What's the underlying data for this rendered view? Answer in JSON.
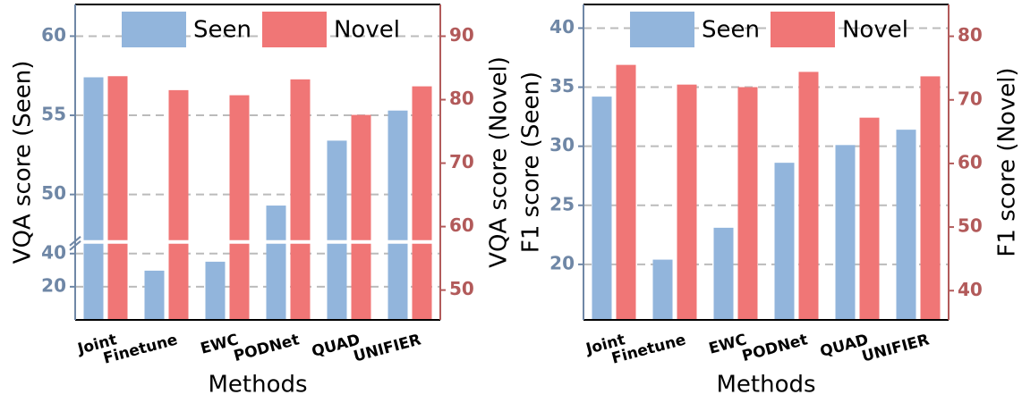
{
  "chart_data": [
    {
      "type": "bar",
      "xlabel": "Methods",
      "ylabel": "VQA score (Seen)",
      "y2label": "VQA score (Novel)",
      "categories": [
        "Joint",
        "Finetune",
        "EWC",
        "PODNet",
        "QUAD",
        "UNIFIER"
      ],
      "series": [
        {
          "name": "Seen",
          "color": "#92b5dc",
          "values": [
            57.4,
            29.7,
            35.1,
            49.3,
            53.4,
            55.3
          ]
        },
        {
          "name": "Novel",
          "color": "#f07676",
          "axis": "y2",
          "values": [
            83.7,
            81.5,
            80.7,
            83.2,
            77.6,
            82.1
          ]
        }
      ],
      "ylim": [
        0,
        62
      ],
      "ybreak": 47,
      "yticks": [
        20,
        40,
        50,
        55,
        60
      ],
      "y2lim": [
        45.3,
        95
      ],
      "y2ticks": [
        50,
        60,
        70,
        80,
        90
      ],
      "grid": true,
      "legend": "upper center"
    },
    {
      "type": "bar",
      "xlabel": "Methods",
      "ylabel": "F1 score (Seen)",
      "y2label": "F1 score (Novel)",
      "categories": [
        "Joint",
        "Finetune",
        "EWC",
        "PODNet",
        "QUAD",
        "UNIFIER"
      ],
      "series": [
        {
          "name": "Seen",
          "color": "#92b5dc",
          "values": [
            34.2,
            20.4,
            23.1,
            28.6,
            30.1,
            31.4
          ]
        },
        {
          "name": "Novel",
          "color": "#f07676",
          "axis": "y2",
          "values": [
            75.5,
            72.4,
            72.0,
            74.4,
            67.2,
            73.7
          ]
        }
      ],
      "ylim": [
        15.3,
        42
      ],
      "yticks": [
        20,
        25,
        30,
        35,
        40
      ],
      "y2lim": [
        35.4,
        85
      ],
      "y2ticks": [
        40,
        50,
        60,
        70,
        80
      ],
      "grid": true,
      "legend": "upper center"
    }
  ]
}
